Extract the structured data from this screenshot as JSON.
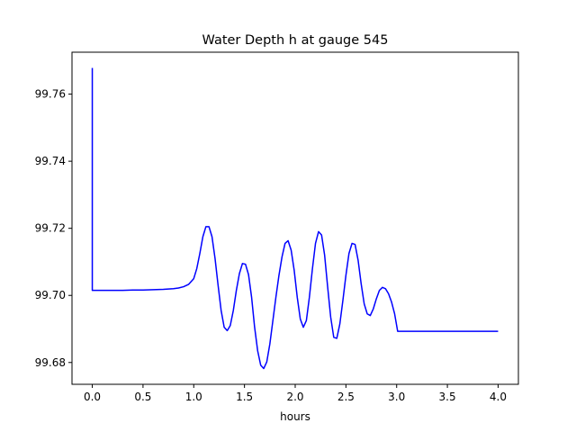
{
  "chart_data": {
    "type": "line",
    "title": "Water Depth h at gauge 545",
    "xlabel": "hours",
    "ylabel": "",
    "xlim": [
      -0.2,
      4.2
    ],
    "ylim": [
      99.6735,
      99.7725
    ],
    "xticks": [
      0.0,
      0.5,
      1.0,
      1.5,
      2.0,
      2.5,
      3.0,
      3.5,
      4.0
    ],
    "xtick_labels": [
      "0.0",
      "0.5",
      "1.0",
      "1.5",
      "2.0",
      "2.5",
      "3.0",
      "3.5",
      "4.0"
    ],
    "yticks": [
      99.68,
      99.7,
      99.72,
      99.74,
      99.76
    ],
    "ytick_labels": [
      "99.68",
      "99.70",
      "99.72",
      "99.74",
      "99.76"
    ],
    "grid": false,
    "line_color": "#0000ff",
    "series": [
      {
        "name": "",
        "x": [
          0.0,
          0.0,
          0.0,
          0.1,
          0.2,
          0.3,
          0.4,
          0.5,
          0.6,
          0.7,
          0.8,
          0.85,
          0.9,
          0.95,
          1.0,
          1.03,
          1.06,
          1.09,
          1.12,
          1.15,
          1.18,
          1.21,
          1.24,
          1.27,
          1.3,
          1.33,
          1.36,
          1.39,
          1.42,
          1.45,
          1.48,
          1.51,
          1.54,
          1.57,
          1.6,
          1.63,
          1.66,
          1.69,
          1.72,
          1.75,
          1.78,
          1.81,
          1.84,
          1.87,
          1.9,
          1.93,
          1.96,
          1.99,
          2.02,
          2.05,
          2.08,
          2.11,
          2.14,
          2.17,
          2.2,
          2.23,
          2.26,
          2.29,
          2.32,
          2.35,
          2.38,
          2.41,
          2.44,
          2.47,
          2.5,
          2.53,
          2.56,
          2.59,
          2.62,
          2.65,
          2.68,
          2.71,
          2.74,
          2.77,
          2.8,
          2.83,
          2.86,
          2.89,
          2.92,
          2.95,
          2.98,
          3.01,
          3.04,
          3.07,
          3.1,
          3.13,
          3.16,
          3.19,
          3.22,
          3.25,
          3.28,
          3.31,
          3.34,
          3.37,
          3.4,
          3.43,
          3.46,
          3.49,
          3.52,
          3.55,
          3.58,
          3.61,
          3.64,
          3.67,
          3.7,
          3.73,
          3.76,
          3.79,
          3.82,
          3.85,
          3.88,
          3.91,
          3.94,
          3.97,
          4.0
        ],
        "y": [
          99.7678,
          99.7015,
          99.7015,
          99.7015,
          99.7015,
          99.7015,
          99.7016,
          99.7016,
          99.7017,
          99.7018,
          99.702,
          99.7022,
          99.7026,
          99.7033,
          99.705,
          99.708,
          99.7125,
          99.7175,
          99.7205,
          99.7205,
          99.7175,
          99.711,
          99.703,
          99.6955,
          99.6905,
          99.6895,
          99.691,
          99.6955,
          99.7015,
          99.7065,
          99.7095,
          99.7093,
          99.7062,
          99.6995,
          99.6905,
          99.6835,
          99.6792,
          99.6782,
          99.6802,
          99.6855,
          99.6925,
          99.6995,
          99.706,
          99.7115,
          99.7155,
          99.7163,
          99.7135,
          99.7075,
          99.6995,
          99.693,
          99.6905,
          99.6925,
          99.6995,
          99.708,
          99.7155,
          99.719,
          99.718,
          99.712,
          99.7025,
          99.6935,
          99.6875,
          99.6872,
          99.6915,
          99.6985,
          99.706,
          99.7125,
          99.7155,
          99.7152,
          99.7105,
          99.7035,
          99.6975,
          99.6945,
          99.694,
          99.696,
          99.699,
          99.7015,
          99.7024,
          99.702,
          99.7005,
          99.698,
          99.6945,
          99.6893,
          99.6893,
          99.6893,
          99.6893,
          99.6893,
          99.6893,
          99.6893,
          99.6893,
          99.6893,
          99.6893,
          99.6893,
          99.6893,
          99.6893,
          99.6893,
          99.6893,
          99.6893,
          99.6893,
          99.6893,
          99.6893,
          99.6893,
          99.6893,
          99.6893,
          99.6893,
          99.6893,
          99.6893,
          99.6893,
          99.6893,
          99.6893,
          99.6893,
          99.6893,
          99.6893,
          99.6893,
          99.6893,
          99.6893
        ]
      }
    ]
  }
}
